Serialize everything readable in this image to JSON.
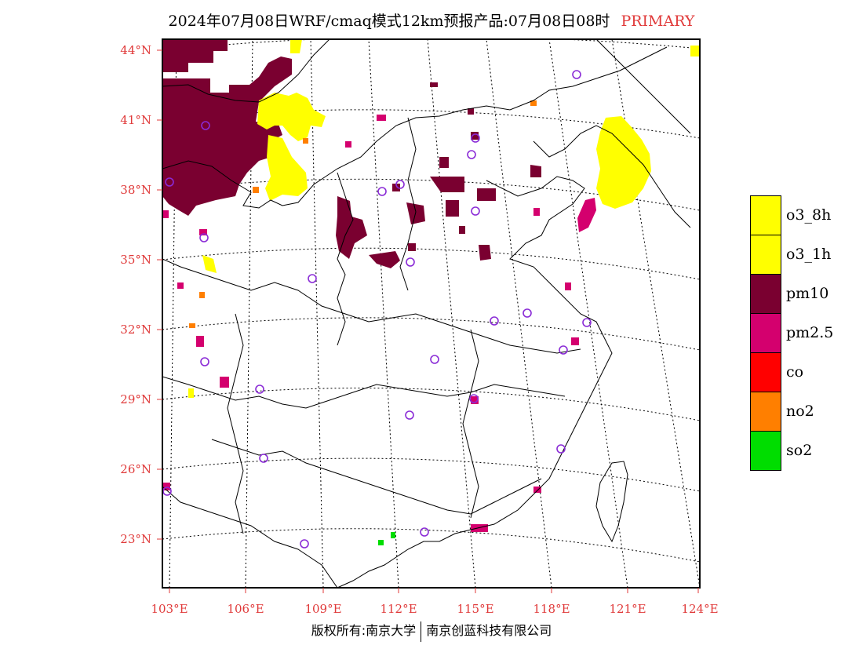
{
  "title": {
    "text": "2024年07月08日WRF/cmaq模式12km预报产品:07月08日08时",
    "tag": "PRIMARY"
  },
  "axes": {
    "lat_labels": [
      "44°N",
      "41°N",
      "38°N",
      "35°N",
      "32°N",
      "29°N",
      "26°N",
      "23°N"
    ],
    "lon_labels": [
      "103°E",
      "106°E",
      "109°E",
      "112°E",
      "115°E",
      "118°E",
      "121°E",
      "124°E"
    ]
  },
  "legend": [
    {
      "label": "o3_8h",
      "color": "#ffff00"
    },
    {
      "label": "o3_1h",
      "color": "#ffff00"
    },
    {
      "label": "pm10",
      "color": "#7a0030"
    },
    {
      "label": "pm2.5",
      "color": "#d4006e"
    },
    {
      "label": "co",
      "color": "#ff0000"
    },
    {
      "label": "no2",
      "color": "#ff7f00"
    },
    {
      "label": "so2",
      "color": "#00dd00"
    }
  ],
  "footer": {
    "left": "版权所有:南京大学",
    "right": "南京创蓝科技有限公司"
  },
  "colors": {
    "label_red": "#e03a3a",
    "city_marker": "#8a2bd6"
  }
}
